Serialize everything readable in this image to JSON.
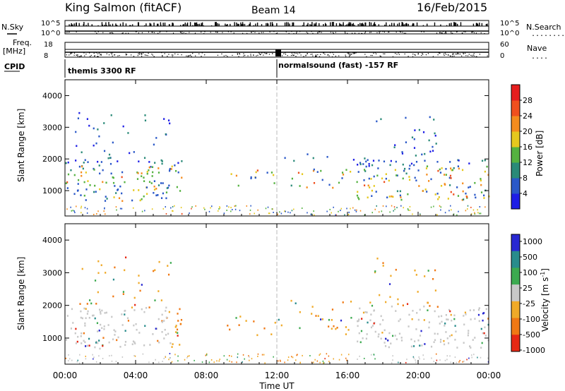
{
  "header": {
    "station": "King Salmon (fitACF)",
    "beam": "Beam 14",
    "date": "16/Feb/2015"
  },
  "status_panels": {
    "nsky_label": "N.Sky",
    "nsearch_label": "N.Search",
    "nsearch_dots": "........",
    "freq_label": "Freq.",
    "freq_unit": "[MHz]",
    "nave_label": "Nave",
    "nave_dots": "....",
    "cpid_label": "CPID",
    "noise_ticks": [
      "10^5",
      "10^0"
    ],
    "freq_ticks": [
      "18",
      "8"
    ],
    "nave_ticks": [
      "60",
      "0"
    ],
    "cpid_segments": [
      "themis 3300 RF",
      "normalsound (fast) -157 RF"
    ]
  },
  "chart_data": [
    {
      "type": "heatmap",
      "quantity": "power",
      "ylabel": "Slant Range [km]",
      "yticks": [
        "1000",
        "2000",
        "3000",
        "4000"
      ],
      "ylim": [
        200,
        4500
      ],
      "colorbar_label": "Power [dB]",
      "colorbar_ticks": [
        "4",
        "8",
        "12",
        "16",
        "20",
        "24",
        "28"
      ],
      "colorbar_range": [
        0,
        32
      ],
      "colors": [
        "#1e1ee6",
        "#2a58c8",
        "#2a8a78",
        "#55b240",
        "#e6c81e",
        "#f58c1e",
        "#f0501e",
        "#e61e1e"
      ]
    },
    {
      "type": "heatmap",
      "quantity": "velocity",
      "ylabel": "Slant Range [km]",
      "yticks": [
        "1000",
        "2000",
        "3000",
        "4000"
      ],
      "ylim": [
        200,
        4500
      ],
      "colorbar_label": "Velocity [m s-1]",
      "colorbar_ticks": [
        "1000",
        "500",
        "100",
        "25",
        "-25",
        "-100",
        "-500",
        "-1000"
      ],
      "colors": [
        "#2828d2",
        "#288c8c",
        "#3caa50",
        "#c8c8c8",
        "#f0aa28",
        "#f07814",
        "#e62814"
      ]
    }
  ],
  "time_axis": {
    "xlabel": "Time UT",
    "ticks": [
      "00:00",
      "04:00",
      "08:00",
      "12:00",
      "16:00",
      "20:00",
      "00:00"
    ],
    "xlim_hours": [
      0,
      24
    ]
  }
}
